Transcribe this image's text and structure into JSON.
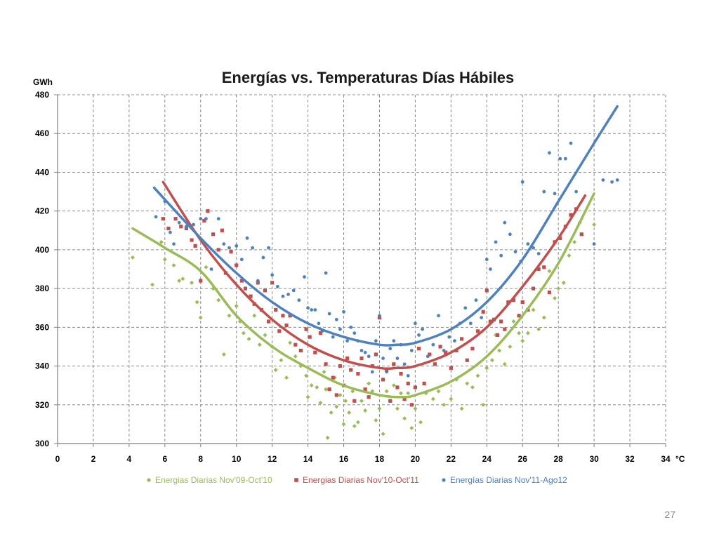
{
  "slide": {
    "page_number": "27"
  },
  "chart_data": {
    "type": "scatter",
    "title": "Energías vs. Temperaturas  Días Hábiles",
    "ylabel": "GWh",
    "xlabel": "°C",
    "xlim": [
      0,
      34
    ],
    "ylim": [
      300,
      480
    ],
    "xticks": [
      0,
      2,
      4,
      6,
      8,
      10,
      12,
      14,
      16,
      18,
      20,
      22,
      24,
      26,
      28,
      30,
      32,
      34
    ],
    "yticks": [
      300,
      320,
      340,
      360,
      380,
      400,
      420,
      440,
      460,
      480
    ],
    "grid": true,
    "legend_position": "bottom",
    "series": [
      {
        "name": "Energias Diarias Nov'09-Oct'10",
        "color": "#9bbb59",
        "marker": "diamond",
        "trend": {
          "x": [
            4.2,
            6,
            8,
            10,
            12,
            14,
            16,
            18,
            19.2,
            20,
            22,
            24,
            26,
            28,
            30
          ],
          "y": [
            411,
            401,
            389,
            366,
            350,
            339,
            330,
            325,
            324,
            325,
            332,
            345,
            366,
            393,
            429
          ]
        },
        "points": [
          [
            4.2,
            396
          ],
          [
            5.3,
            382
          ],
          [
            5.8,
            404
          ],
          [
            6,
            395
          ],
          [
            6.5,
            392
          ],
          [
            6.8,
            384
          ],
          [
            7,
            385
          ],
          [
            7.5,
            383
          ],
          [
            7.8,
            373
          ],
          [
            8,
            365
          ],
          [
            8.3,
            391
          ],
          [
            8.7,
            380
          ],
          [
            9,
            374
          ],
          [
            9.3,
            346
          ],
          [
            9.6,
            366
          ],
          [
            10,
            371
          ],
          [
            10.2,
            363
          ],
          [
            10.4,
            357
          ],
          [
            10.7,
            354
          ],
          [
            11,
            366
          ],
          [
            11.3,
            351
          ],
          [
            11.6,
            356
          ],
          [
            12,
            350
          ],
          [
            12.2,
            338
          ],
          [
            12.5,
            343
          ],
          [
            12.8,
            334
          ],
          [
            13,
            352
          ],
          [
            13.3,
            345
          ],
          [
            13.6,
            340
          ],
          [
            13.9,
            335
          ],
          [
            14,
            324
          ],
          [
            14.2,
            330
          ],
          [
            14.5,
            329
          ],
          [
            14.7,
            321
          ],
          [
            14.9,
            337
          ],
          [
            15,
            328
          ],
          [
            15.1,
            303
          ],
          [
            15.3,
            316
          ],
          [
            15.5,
            334
          ],
          [
            15.6,
            319
          ],
          [
            15.8,
            325
          ],
          [
            16,
            310
          ],
          [
            16.1,
            322
          ],
          [
            16.3,
            316
          ],
          [
            16.5,
            327
          ],
          [
            16.6,
            309
          ],
          [
            16.8,
            311
          ],
          [
            17,
            322
          ],
          [
            17.2,
            317
          ],
          [
            17.4,
            331
          ],
          [
            17.6,
            327
          ],
          [
            17.8,
            312
          ],
          [
            18,
            318
          ],
          [
            18.2,
            305
          ],
          [
            18.4,
            327
          ],
          [
            18.6,
            322
          ],
          [
            18.8,
            330
          ],
          [
            19,
            318
          ],
          [
            19.2,
            326
          ],
          [
            19.4,
            313
          ],
          [
            19.6,
            326
          ],
          [
            19.8,
            308
          ],
          [
            20,
            318
          ],
          [
            20.3,
            311
          ],
          [
            20.6,
            326
          ],
          [
            21,
            323
          ],
          [
            21.3,
            327
          ],
          [
            21.6,
            320
          ],
          [
            22,
            323
          ],
          [
            22.3,
            333
          ],
          [
            22.6,
            318
          ],
          [
            22.9,
            331
          ],
          [
            23.2,
            329
          ],
          [
            23.5,
            335
          ],
          [
            23.8,
            320
          ],
          [
            24,
            339
          ],
          [
            24.3,
            343
          ],
          [
            24.5,
            356
          ],
          [
            24.7,
            348
          ],
          [
            25,
            341
          ],
          [
            25.3,
            350
          ],
          [
            25.5,
            363
          ],
          [
            25.8,
            357
          ],
          [
            26,
            353
          ],
          [
            26.3,
            357
          ],
          [
            26.6,
            369
          ],
          [
            26.9,
            359
          ],
          [
            27.2,
            365
          ],
          [
            27.5,
            389
          ],
          [
            27.8,
            375
          ],
          [
            28,
            380
          ],
          [
            28.3,
            383
          ],
          [
            28.6,
            397
          ],
          [
            28.9,
            404
          ],
          [
            29.2,
            414
          ],
          [
            30,
            413
          ]
        ]
      },
      {
        "name": "Energias Diarias Nov'10-Oct'11",
        "color": "#c0504d",
        "marker": "square",
        "trend": {
          "x": [
            5.9,
            8,
            10,
            12,
            14,
            16,
            18,
            19,
            20,
            22,
            24,
            26,
            28,
            29.5
          ],
          "y": [
            435,
            405,
            382,
            364,
            351,
            343,
            339,
            339,
            340,
            347,
            360,
            381,
            406,
            428
          ]
        },
        "points": [
          [
            5.9,
            416
          ],
          [
            6.2,
            411
          ],
          [
            6.6,
            416
          ],
          [
            6.9,
            412
          ],
          [
            7.2,
            411
          ],
          [
            7.5,
            405
          ],
          [
            7.7,
            402
          ],
          [
            8,
            384
          ],
          [
            8.2,
            415
          ],
          [
            8.4,
            420
          ],
          [
            8.7,
            408
          ],
          [
            9,
            400
          ],
          [
            9.2,
            410
          ],
          [
            9.4,
            388
          ],
          [
            9.7,
            399
          ],
          [
            10,
            392
          ],
          [
            10.3,
            384
          ],
          [
            10.5,
            380
          ],
          [
            10.8,
            376
          ],
          [
            11,
            372
          ],
          [
            11.2,
            383
          ],
          [
            11.4,
            369
          ],
          [
            11.6,
            379
          ],
          [
            11.8,
            363
          ],
          [
            12,
            383
          ],
          [
            12.2,
            369
          ],
          [
            12.4,
            358
          ],
          [
            12.6,
            366
          ],
          [
            12.8,
            361
          ],
          [
            13,
            366
          ],
          [
            13.3,
            351
          ],
          [
            13.6,
            348
          ],
          [
            13.9,
            359
          ],
          [
            14.1,
            355
          ],
          [
            14.4,
            347
          ],
          [
            14.7,
            357
          ],
          [
            15,
            341
          ],
          [
            15.2,
            328
          ],
          [
            15.4,
            334
          ],
          [
            15.6,
            325
          ],
          [
            15.8,
            340
          ],
          [
            16,
            330
          ],
          [
            16.2,
            344
          ],
          [
            16.4,
            338
          ],
          [
            16.6,
            322
          ],
          [
            16.8,
            336
          ],
          [
            17,
            344
          ],
          [
            17.2,
            328
          ],
          [
            17.4,
            324
          ],
          [
            17.6,
            340
          ],
          [
            17.8,
            346
          ],
          [
            18,
            365
          ],
          [
            18.2,
            333
          ],
          [
            18.4,
            338
          ],
          [
            18.6,
            322
          ],
          [
            18.8,
            341
          ],
          [
            19,
            329
          ],
          [
            19.2,
            336
          ],
          [
            19.4,
            323
          ],
          [
            19.6,
            331
          ],
          [
            19.8,
            320
          ],
          [
            20,
            329
          ],
          [
            20.2,
            349
          ],
          [
            20.5,
            331
          ],
          [
            20.8,
            346
          ],
          [
            21.1,
            341
          ],
          [
            21.4,
            350
          ],
          [
            21.7,
            347
          ],
          [
            22,
            339
          ],
          [
            22.3,
            348
          ],
          [
            22.6,
            354
          ],
          [
            22.9,
            343
          ],
          [
            23.2,
            349
          ],
          [
            23.5,
            358
          ],
          [
            23.8,
            368
          ],
          [
            24,
            379
          ],
          [
            24.2,
            363
          ],
          [
            24.4,
            364
          ],
          [
            24.6,
            356
          ],
          [
            24.8,
            363
          ],
          [
            25,
            359
          ],
          [
            25.2,
            373
          ],
          [
            25.5,
            374
          ],
          [
            25.8,
            366
          ],
          [
            26,
            373
          ],
          [
            26.3,
            369
          ],
          [
            26.6,
            380
          ],
          [
            26.9,
            390
          ],
          [
            27.2,
            391
          ],
          [
            27.5,
            378
          ],
          [
            27.8,
            404
          ],
          [
            28.1,
            406
          ],
          [
            28.4,
            412
          ],
          [
            28.7,
            418
          ],
          [
            29,
            421
          ],
          [
            29.3,
            408
          ]
        ]
      },
      {
        "name": "Energías Diarias Nov'11-Ago12",
        "color": "#4f81bd",
        "marker": "circle",
        "trend": {
          "x": [
            5.4,
            8,
            10,
            12,
            14,
            16,
            18,
            19,
            20,
            22,
            24,
            26,
            28,
            30,
            31.3
          ],
          "y": [
            432,
            406,
            388,
            373,
            362,
            355,
            351,
            351,
            352,
            359,
            373,
            395,
            425,
            455,
            474
          ]
        },
        "points": [
          [
            5.5,
            417
          ],
          [
            6,
            425
          ],
          [
            6.3,
            409
          ],
          [
            6.5,
            403
          ],
          [
            6.8,
            414
          ],
          [
            7.2,
            412
          ],
          [
            7.6,
            413
          ],
          [
            8,
            416
          ],
          [
            8.3,
            416
          ],
          [
            8.6,
            390
          ],
          [
            9,
            416
          ],
          [
            9.3,
            403
          ],
          [
            9.6,
            401
          ],
          [
            10,
            402
          ],
          [
            10.3,
            395
          ],
          [
            10.6,
            406
          ],
          [
            10.9,
            401
          ],
          [
            11.2,
            384
          ],
          [
            11.5,
            396
          ],
          [
            11.8,
            401
          ],
          [
            12,
            387
          ],
          [
            12.3,
            381
          ],
          [
            12.6,
            376
          ],
          [
            12.9,
            377
          ],
          [
            13.2,
            379
          ],
          [
            13.5,
            374
          ],
          [
            13.8,
            386
          ],
          [
            14,
            370
          ],
          [
            14.2,
            369
          ],
          [
            14.4,
            369
          ],
          [
            14.6,
            362
          ],
          [
            14.8,
            358
          ],
          [
            15,
            388
          ],
          [
            15.2,
            367
          ],
          [
            15.4,
            355
          ],
          [
            15.6,
            364
          ],
          [
            15.8,
            359
          ],
          [
            16,
            368
          ],
          [
            16.2,
            353
          ],
          [
            16.4,
            360
          ],
          [
            16.6,
            357
          ],
          [
            16.8,
            353
          ],
          [
            17,
            348
          ],
          [
            17.2,
            347
          ],
          [
            17.4,
            345
          ],
          [
            17.6,
            337
          ],
          [
            17.8,
            353
          ],
          [
            18,
            366
          ],
          [
            18.2,
            344
          ],
          [
            18.4,
            337
          ],
          [
            18.6,
            349
          ],
          [
            18.8,
            353
          ],
          [
            19,
            344
          ],
          [
            19.2,
            351
          ],
          [
            19.4,
            341
          ],
          [
            19.6,
            335
          ],
          [
            19.8,
            348
          ],
          [
            20,
            362
          ],
          [
            20.2,
            356
          ],
          [
            20.4,
            359
          ],
          [
            20.7,
            345
          ],
          [
            21,
            351
          ],
          [
            21.3,
            366
          ],
          [
            21.6,
            348
          ],
          [
            21.9,
            355
          ],
          [
            22.2,
            353
          ],
          [
            22.5,
            362
          ],
          [
            22.8,
            370
          ],
          [
            23.1,
            362
          ],
          [
            23.4,
            374
          ],
          [
            23.7,
            365
          ],
          [
            24,
            395
          ],
          [
            24.2,
            390
          ],
          [
            24.5,
            404
          ],
          [
            24.8,
            397
          ],
          [
            25,
            414
          ],
          [
            25.3,
            408
          ],
          [
            25.6,
            399
          ],
          [
            25.9,
            394
          ],
          [
            26,
            435
          ],
          [
            26.3,
            403
          ],
          [
            26.6,
            401
          ],
          [
            26.9,
            398
          ],
          [
            27.2,
            430
          ],
          [
            27.5,
            450
          ],
          [
            27.8,
            429
          ],
          [
            28.1,
            447
          ],
          [
            28.4,
            447
          ],
          [
            28.7,
            455
          ],
          [
            29,
            430
          ],
          [
            30,
            403
          ],
          [
            30.5,
            436
          ],
          [
            31,
            435
          ],
          [
            31.3,
            436
          ]
        ]
      }
    ]
  }
}
